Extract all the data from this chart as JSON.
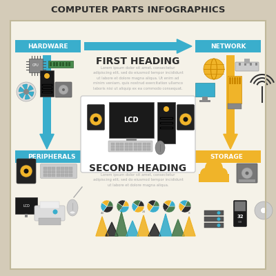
{
  "title": "COMPUTER PARTS INFOGRAPHICS",
  "bg_outer": "#d4cbb8",
  "bg_inner": "#f5f2e8",
  "title_color": "#2c2c2c",
  "teal": "#3aaecc",
  "gold": "#f0b429",
  "dark": "#2c2c2c",
  "white": "#ffffff",
  "gray_text": "#aaaaaa",
  "green": "#4a7c4e",
  "labels": {
    "hardware": "HARDWARE",
    "network": "NETWORK",
    "peripherals": "PERIPHERALS",
    "storage": "STORAGE",
    "first_heading": "FIRST HEADING",
    "second_heading": "SECOND HEADING"
  },
  "lorem1": "Lorem ipsum dolor sit amet, consectetur\nadipiscing elit, sed do eiusmod tempor incididunt\nut labore et dolore magna aliqua. Ut enim ad\nminim veniam, quis nostrud exercitation ullamco\nlaboris nisi ut aliquip ex ea commodo consequat.",
  "lorem2": "Lorem ipsum dolor sit amet, consectetur\nadipiscing elit, sed do eiusmod tempor incididunt\nut labore et dolore magna aliqua."
}
